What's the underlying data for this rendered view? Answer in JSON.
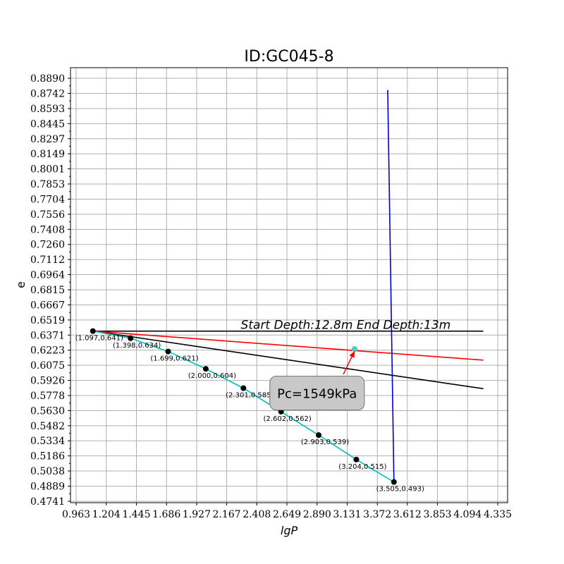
{
  "chart_data": {
    "type": "line",
    "title": "ID:GC045-8",
    "xlabel": "lgP",
    "ylabel": "e",
    "xlim": [
      0.963,
      4.335
    ],
    "ylim": [
      0.4741,
      0.889
    ],
    "x_ticks": [
      "0.963",
      "1.204",
      "1.445",
      "1.686",
      "1.927",
      "2.167",
      "2.408",
      "2.649",
      "2.890",
      "3.131",
      "3.372",
      "3.612",
      "3.853",
      "4.094",
      "4.335"
    ],
    "y_ticks": [
      "0.4741",
      "0.4889",
      "0.5038",
      "0.5186",
      "0.5334",
      "0.5482",
      "0.5630",
      "0.5778",
      "0.5926",
      "0.6075",
      "0.6223",
      "0.6371",
      "0.6519",
      "0.6667",
      "0.6815",
      "0.6964",
      "0.7112",
      "0.7260",
      "0.7408",
      "0.7556",
      "0.7704",
      "0.7853",
      "0.8001",
      "0.8149",
      "0.8297",
      "0.8445",
      "0.8593",
      "0.8742",
      "0.8890"
    ],
    "grid": true,
    "series": [
      {
        "color": "#00bfbf",
        "marker_color": "#000000",
        "points": [
          {
            "x": 1.097,
            "y": 0.641,
            "label": "(1.097,0.641)"
          },
          {
            "x": 1.398,
            "y": 0.634,
            "label": "(1.398,0.634)"
          },
          {
            "x": 1.699,
            "y": 0.621,
            "label": "(1.699,0.621)"
          },
          {
            "x": 2.0,
            "y": 0.604,
            "label": "(2.000,0.604)"
          },
          {
            "x": 2.301,
            "y": 0.585,
            "label": "(2.301,0.585)"
          },
          {
            "x": 2.602,
            "y": 0.562,
            "label": "(2.602,0.562)"
          },
          {
            "x": 2.903,
            "y": 0.539,
            "label": "(2.903,0.539)"
          },
          {
            "x": 3.204,
            "y": 0.515,
            "label": "(3.204,0.515)"
          },
          {
            "x": 3.505,
            "y": 0.493,
            "label": "(3.505,0.493)"
          }
        ]
      },
      {
        "color": "#000000",
        "points": [
          {
            "x": 1.097,
            "y": 0.641
          },
          {
            "x": 4.22,
            "y": 0.641
          }
        ]
      },
      {
        "color": "#000000",
        "points": [
          {
            "x": 1.097,
            "y": 0.641
          },
          {
            "x": 4.22,
            "y": 0.5845
          }
        ]
      },
      {
        "color": "#ff0000",
        "points": [
          {
            "x": 1.097,
            "y": 0.641
          },
          {
            "x": 4.22,
            "y": 0.6125
          }
        ]
      },
      {
        "color": "#0000cc",
        "points": [
          {
            "x": 3.455,
            "y": 0.8775
          },
          {
            "x": 3.505,
            "y": 0.493
          }
        ]
      }
    ],
    "pc_point": {
      "x": 3.19,
      "y": 0.6235,
      "color": "#40d0d0"
    },
    "annotations": {
      "depth_text": "Start Depth:12.8m End Depth:13m",
      "depth_text_pos": {
        "x": 2.28,
        "y": 0.6431
      },
      "pc_label": "Pc=1549kPa",
      "pc_box_center": {
        "x": 2.89,
        "y": 0.5802
      },
      "arrow_from": {
        "x": 3.1,
        "y": 0.5985
      },
      "arrow_to": {
        "x": 3.19,
        "y": 0.6215
      },
      "arrow_color": "#ff0000",
      "box_fill": "#c8c8c8",
      "box_stroke": "#808080"
    }
  }
}
